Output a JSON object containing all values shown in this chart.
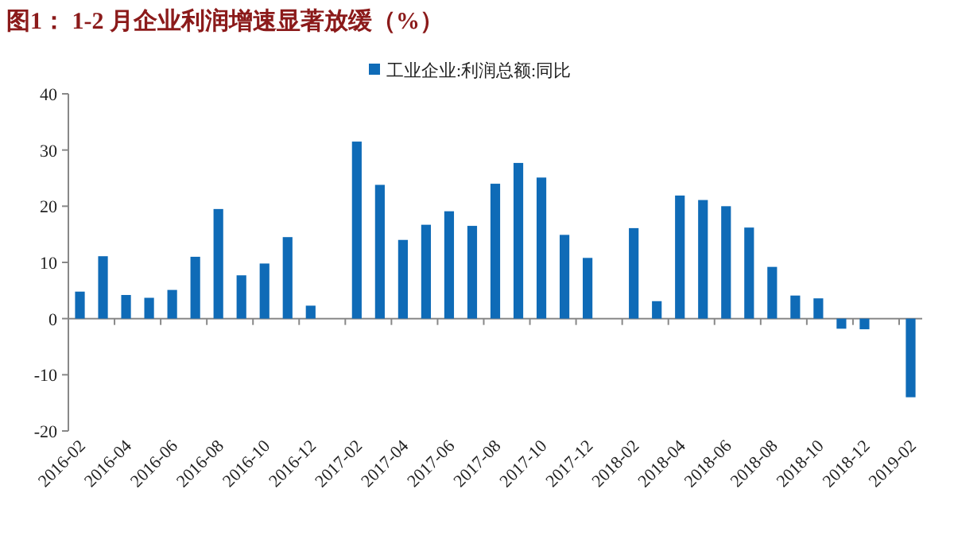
{
  "chart_data": {
    "type": "bar",
    "title": "图1：  1-2 月企业利润增速显著放缓（%）",
    "categories": [
      "2016-02",
      null,
      "2016-04",
      null,
      "2016-06",
      null,
      "2016-08",
      null,
      "2016-10",
      null,
      "2016-12",
      null,
      "2017-02",
      null,
      "2017-04",
      null,
      "2017-06",
      null,
      "2017-08",
      null,
      "2017-10",
      null,
      "2017-12",
      null,
      "2018-02",
      null,
      "2018-04",
      null,
      "2018-06",
      null,
      "2018-08",
      null,
      "2018-10",
      null,
      "2018-12",
      null,
      "2019-02"
    ],
    "series": [
      {
        "name": "工业企业:利润总额:同比",
        "color": "#0f6bb7",
        "values": [
          4.8,
          11.1,
          4.2,
          3.7,
          5.1,
          11.0,
          19.5,
          7.7,
          9.8,
          14.5,
          2.3,
          null,
          31.5,
          23.8,
          14.0,
          16.7,
          19.1,
          16.5,
          24.0,
          27.7,
          25.1,
          14.9,
          10.8,
          null,
          16.1,
          3.1,
          21.9,
          21.1,
          20.0,
          16.2,
          9.2,
          4.1,
          3.6,
          -1.8,
          -1.9,
          null,
          -14.0
        ]
      }
    ],
    "ylim": [
      -20,
      40
    ],
    "yticks": [
      -20,
      -10,
      0,
      10,
      20,
      30,
      40
    ],
    "legend": "top"
  }
}
